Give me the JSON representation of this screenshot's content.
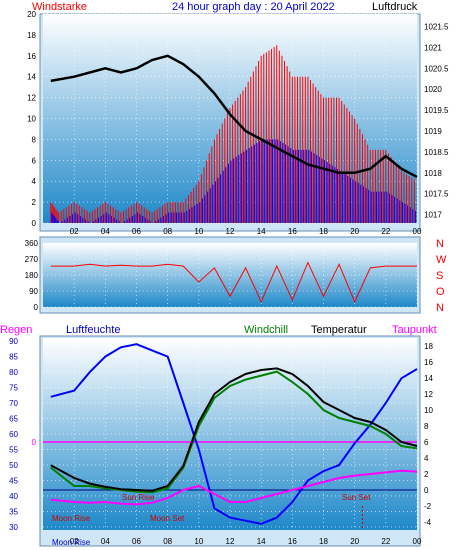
{
  "header": {
    "left_label": "Windstarke",
    "title": "24 hour graph day : 20 April 2022",
    "right_label": "Luftdruck"
  },
  "colors": {
    "wind_gust": "#ff0000",
    "wind_avg": "#0000ff",
    "pressure": "#000000",
    "direction": "#ff0000",
    "humidity": "#0000ff",
    "temperature": "#000000",
    "windchill": "#008000",
    "dewpoint": "#ff00ff",
    "rain": "#ff00ff",
    "moon": "#cc0000",
    "sun": "#cc0000",
    "panel_top": "#ffffff",
    "panel_bottom": "#1e88c9"
  },
  "chart_data": [
    {
      "type": "line",
      "name": "wind_pressure",
      "x_ticks": [
        "02",
        "04",
        "06",
        "08",
        "10",
        "12",
        "14",
        "16",
        "18",
        "20",
        "22",
        "00"
      ],
      "y_left_ticks": [
        0,
        2,
        4,
        6,
        8,
        10,
        12,
        14,
        16,
        18,
        20
      ],
      "y_left_range": [
        0,
        20
      ],
      "y_right_ticks": [
        1017,
        1017.5,
        1018,
        1018.5,
        1019,
        1019.5,
        1020,
        1020.5,
        1021,
        1021.5
      ],
      "y_right_range": [
        1016.8,
        1021.8
      ],
      "series": [
        {
          "name": "Windstarke",
          "kind": "gust",
          "x": [
            0.5,
            1,
            2,
            3,
            4,
            5,
            6,
            7,
            8,
            9,
            10,
            11,
            12,
            13,
            14,
            15,
            16,
            17,
            18,
            19,
            20,
            21,
            22,
            23,
            24
          ],
          "values": [
            2,
            1,
            2,
            1,
            2,
            1,
            2,
            1,
            2,
            2,
            4,
            8,
            11,
            13,
            16,
            17,
            14,
            14,
            12,
            12,
            10,
            7,
            7,
            5,
            4
          ]
        },
        {
          "name": "Windstarke",
          "kind": "average",
          "x": [
            0.5,
            1,
            2,
            3,
            4,
            5,
            6,
            7,
            8,
            9,
            10,
            11,
            12,
            13,
            14,
            15,
            16,
            17,
            18,
            19,
            20,
            21,
            22,
            23,
            24
          ],
          "values": [
            1,
            0,
            1,
            0,
            1,
            0,
            1,
            0,
            1,
            1,
            2,
            4,
            6,
            7,
            8,
            8,
            7,
            7,
            6,
            5,
            4,
            3,
            3,
            2,
            1
          ]
        },
        {
          "name": "Luftdruck",
          "kind": "pressure",
          "x": [
            0.5,
            2,
            3,
            4,
            5,
            6,
            7,
            8,
            9,
            10,
            11,
            12,
            13,
            14,
            15,
            16,
            17,
            18,
            19,
            20,
            21,
            22,
            23,
            24
          ],
          "values": [
            1020.2,
            1020.3,
            1020.4,
            1020.5,
            1020.4,
            1020.5,
            1020.7,
            1020.8,
            1020.6,
            1020.3,
            1019.9,
            1019.4,
            1019.0,
            1018.8,
            1018.6,
            1018.4,
            1018.2,
            1018.1,
            1018.0,
            1018.0,
            1018.1,
            1018.4,
            1018.1,
            1017.9
          ]
        }
      ]
    },
    {
      "type": "line",
      "name": "wind_direction",
      "y_ticks": [
        0,
        90,
        180,
        270,
        360
      ],
      "y_range": [
        0,
        360
      ],
      "compass": [
        "N",
        "W",
        "S",
        "O",
        "N"
      ],
      "series": [
        {
          "name": "direction",
          "x": [
            0.5,
            1,
            2,
            3,
            4,
            5,
            6,
            7,
            8,
            9,
            10,
            11,
            12,
            13,
            14,
            15,
            16,
            17,
            18,
            19,
            20,
            21,
            22,
            23,
            24
          ],
          "values": [
            230,
            230,
            230,
            240,
            230,
            235,
            230,
            230,
            240,
            230,
            140,
            220,
            60,
            220,
            30,
            230,
            40,
            250,
            60,
            240,
            30,
            220,
            230,
            230,
            230
          ]
        }
      ]
    },
    {
      "type": "line",
      "name": "temp_humidity",
      "y_left_ticks": [
        30,
        35,
        40,
        45,
        50,
        55,
        60,
        65,
        70,
        75,
        80,
        85,
        90
      ],
      "y_left_range": [
        29,
        91
      ],
      "y_right_ticks": [
        -4,
        -2,
        0,
        2,
        4,
        6,
        8,
        10,
        12,
        14,
        16,
        18
      ],
      "y_right_range": [
        -5,
        19
      ],
      "series": [
        {
          "name": "Luftfeuchte",
          "x": [
            0.5,
            2,
            3,
            4,
            5,
            6,
            7,
            8,
            9,
            10,
            11,
            12,
            13,
            14,
            15,
            16,
            17,
            18,
            19,
            20,
            21,
            22,
            23,
            24
          ],
          "values": [
            72,
            74,
            80,
            85,
            88,
            89,
            87,
            85,
            70,
            55,
            36,
            33,
            32,
            31,
            33,
            38,
            45,
            48,
            50,
            57,
            63,
            70,
            78,
            81
          ]
        },
        {
          "name": "Temperatur",
          "x": [
            0.5,
            2,
            3,
            4,
            5,
            6,
            7,
            8,
            9,
            10,
            11,
            12,
            13,
            14,
            15,
            16,
            17,
            18,
            19,
            20,
            21,
            22,
            23,
            24
          ],
          "values": [
            3.1,
            1.5,
            0.8,
            0.4,
            0.1,
            0,
            -0.1,
            0.5,
            3,
            8.5,
            12,
            13.5,
            14.5,
            15,
            15.2,
            14.5,
            13,
            11,
            10,
            9,
            8.5,
            7.5,
            6,
            5.5
          ]
        },
        {
          "name": "Windchill",
          "x": [
            0.5,
            2,
            3,
            4,
            5,
            6,
            7,
            8,
            9,
            10,
            11,
            12,
            13,
            14,
            15,
            16,
            17,
            18,
            19,
            20,
            21,
            22,
            23,
            24
          ],
          "values": [
            2.8,
            0.5,
            0.5,
            0.2,
            0,
            -0.2,
            -0.3,
            0.2,
            2.8,
            8,
            11.5,
            13,
            13.8,
            14.3,
            14.8,
            13.5,
            12,
            10,
            9,
            8.5,
            8,
            7,
            5.5,
            5.2
          ]
        },
        {
          "name": "Taupunkt",
          "x": [
            0.5,
            2,
            3,
            4,
            5,
            6,
            7,
            8,
            9,
            10,
            11,
            12,
            13,
            14,
            15,
            16,
            17,
            18,
            19,
            20,
            21,
            22,
            23,
            24
          ],
          "values": [
            -1.2,
            -1.5,
            -1.6,
            -1.5,
            -1.7,
            -1.8,
            -1.6,
            -1,
            0,
            0.5,
            -0.5,
            -1.5,
            -1.5,
            -1,
            -0.5,
            0,
            0.5,
            1,
            1.5,
            1.8,
            2,
            2.2,
            2.4,
            2.3
          ]
        }
      ],
      "rain_label": "0"
    }
  ],
  "panel3_labels": {
    "regen": "Regen",
    "luftfeuchte": "Luftfeuchte",
    "windchill": "Windchill",
    "temperatur": "Temperatur",
    "taupunkt": "Taupunkt",
    "moon_rise": "Moon Rise",
    "moon_set": "Moon Set",
    "sun_rise": "Sun Rise",
    "sun_set": "Sun Set",
    "bottom_moon_rise": "Moon Rise"
  }
}
